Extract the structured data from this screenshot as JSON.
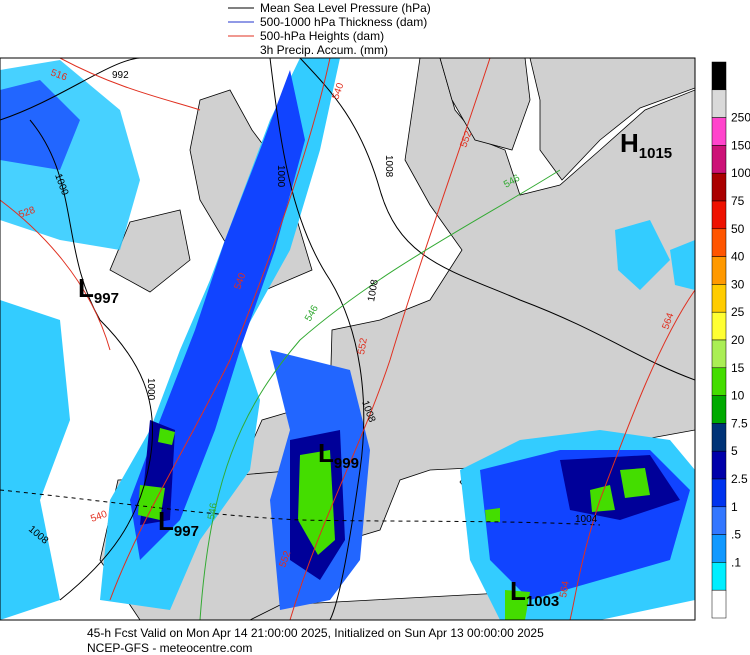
{
  "legend": [
    "Mean Sea Level Pressure (hPa)",
    "500-1000 hPa Thickness (dam)",
    "500-hPa Heights (dam)",
    "3h Precip. Accum. (mm)"
  ],
  "colorbar": {
    "labels": [
      "250",
      "150",
      "100",
      "75",
      "50",
      "40",
      "30",
      "25",
      "20",
      "15",
      "10",
      "7.5",
      "5",
      "2.5",
      "1",
      ".5",
      ".1"
    ]
  },
  "centers": [
    {
      "symbol": "L",
      "value": "997"
    },
    {
      "symbol": "L",
      "value": "997"
    },
    {
      "symbol": "L",
      "value": "999"
    },
    {
      "symbol": "L",
      "value": "1003"
    },
    {
      "symbol": "H",
      "value": "1015"
    }
  ],
  "contour_labels": [
    "516",
    "992",
    "1000",
    "528",
    "1000",
    "540",
    "1008",
    "552",
    "546",
    "540",
    "546",
    "1008",
    "552",
    "1008",
    "1000",
    "540",
    "1008",
    "546",
    "552",
    "1004",
    "564",
    "564"
  ],
  "footer": {
    "line1": "45-h Fcst Valid on Mon Apr 14 21:00:00 2025, Initialized on Sun Apr 13 00:00:00 2025",
    "line2": "NCEP-GFS  - meteocentre.com"
  }
}
